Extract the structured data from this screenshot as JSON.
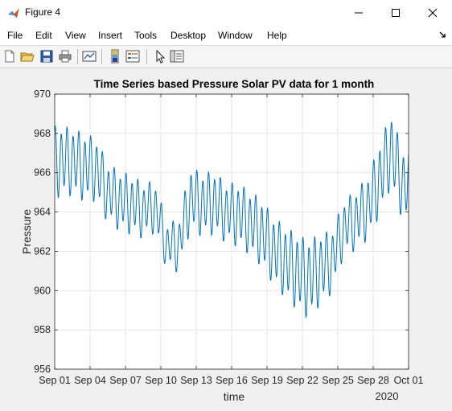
{
  "window": {
    "title": "Figure 4",
    "minimize_icon": "minimize-icon",
    "maximize_icon": "maximize-icon",
    "close_icon": "close-icon"
  },
  "menu": {
    "items": [
      "File",
      "Edit",
      "View",
      "Insert",
      "Tools",
      "Desktop",
      "Window",
      "Help"
    ],
    "dock_icon": "dock-arrow-icon"
  },
  "toolbar": {
    "icons": [
      "new-figure-icon",
      "open-file-icon",
      "save-icon",
      "print-icon",
      "link-plot-icon",
      "insert-colorbar-icon",
      "insert-legend-icon",
      "edit-plot-arrow-icon",
      "property-inspector-icon"
    ]
  },
  "colors": {
    "line": "#0072bd",
    "grid": "#dfdfdf",
    "axes_bg": "#ffffff",
    "figure_bg": "#f0f0f0"
  },
  "chart_data": {
    "type": "line",
    "title": "Time Series based Pressure Solar PV data for 1 month",
    "xlabel": "time",
    "ylabel": "Pressure",
    "year_label": "2020",
    "xlim": [
      "2020-09-01",
      "2020-10-01"
    ],
    "ylim": [
      956,
      970
    ],
    "x_tick_labels": [
      "Sep 01",
      "Sep 04",
      "Sep 07",
      "Sep 10",
      "Sep 13",
      "Sep 16",
      "Sep 19",
      "Sep 22",
      "Sep 25",
      "Sep 28",
      "Oct 01"
    ],
    "x_tick_days": [
      0,
      3,
      6,
      9,
      12,
      15,
      18,
      21,
      24,
      27,
      30
    ],
    "y_ticks": [
      956,
      958,
      960,
      962,
      964,
      966,
      968,
      970
    ],
    "grid": true,
    "legend": "none",
    "series": [
      {
        "sampling": "hourly, starting 2020-09-01 00:00",
        "daily_mean": [
          966.6,
          966.6,
          966.3,
          966.2,
          965.0,
          964.6,
          964.4,
          964.1,
          964.3,
          962.3,
          962.3,
          964.7,
          964.4,
          964.5,
          964.0,
          963.9,
          963.5,
          963.0,
          962.1,
          961.5,
          961.0,
          960.6,
          961.1,
          961.5,
          963.2,
          963.6,
          964.2,
          965.6,
          967.2,
          965.4
        ],
        "daily_amplitude": [
          1.6,
          1.5,
          1.5,
          1.4,
          1.3,
          1.3,
          1.3,
          1.2,
          1.1,
          1.0,
          1.1,
          1.4,
          1.4,
          1.4,
          1.3,
          1.4,
          1.4,
          1.5,
          1.5,
          1.6,
          1.7,
          1.8,
          1.6,
          1.4,
          1.2,
          1.3,
          1.4,
          1.6,
          1.7,
          1.6
        ]
      }
    ]
  }
}
